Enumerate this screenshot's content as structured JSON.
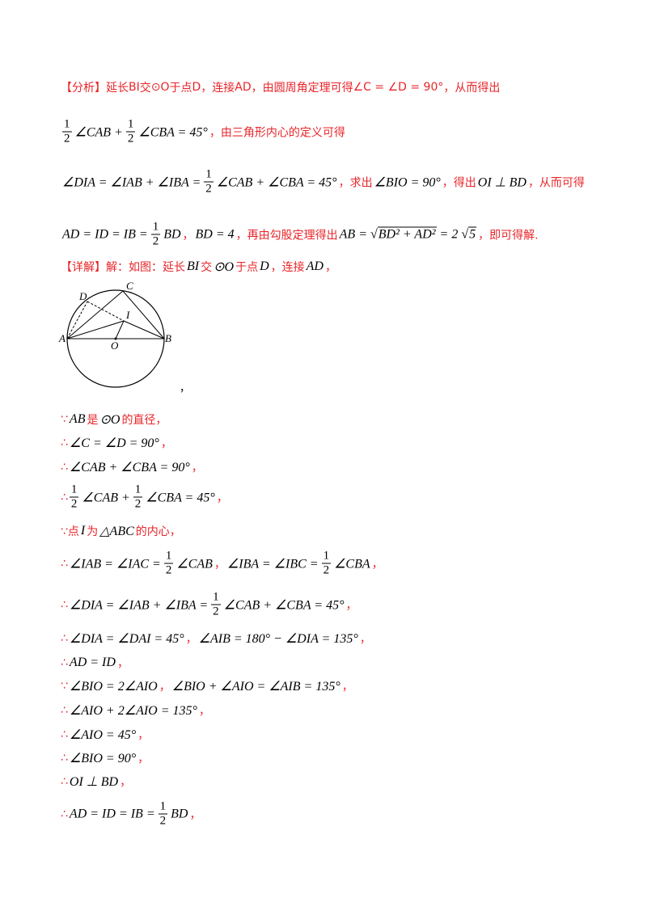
{
  "lines": [
    [
      "【分析】延长",
      "BI",
      "交",
      "⊙O",
      "于点",
      "D",
      "，连接",
      "AD",
      "，由圆周角定理可得",
      "∠C = ∠D = 90°",
      "，从而得出"
    ],
    [
      {
        "frac": [
          "1",
          "2"
        ]
      },
      {
        "math": "∠CAB +"
      },
      {
        "frac": [
          "1",
          "2"
        ]
      },
      {
        "math": "∠CBA = 45°"
      },
      "，由三角形内心的定义可得"
    ],
    [
      {
        "math": "∠DIA = ∠IAB + ∠IBA ="
      },
      {
        "frac": [
          "1",
          "2"
        ]
      },
      {
        "math": "∠CAB + ∠CBA = 45°"
      },
      "，求出",
      {
        "math": "∠BIO = 90°"
      },
      "，得出",
      {
        "math": "OI ⊥ BD"
      },
      "，从而可得"
    ],
    [
      {
        "math": "AD = ID = IB ="
      },
      {
        "frac": [
          "1",
          "2"
        ]
      },
      {
        "math": "BD"
      },
      "，",
      {
        "math": "BD = 4"
      },
      "，再由勾股定理得出",
      {
        "math": "AB ="
      },
      {
        "sqrt": "BD² + AD²"
      },
      {
        "math": "= 2"
      },
      {
        "sqrt": "5"
      },
      "，即可得解."
    ],
    [
      "【详解】解：如图：延长",
      {
        "math": "BI"
      },
      "交",
      {
        "math": "⊙O"
      },
      "于点",
      {
        "math": "D"
      },
      "，连接",
      {
        "math": "AD"
      },
      "，"
    ],
    [
      "∵",
      {
        "math": "AB"
      },
      "是",
      {
        "math": "⊙O"
      },
      "的直径，"
    ],
    [
      "∴",
      {
        "math": "∠C = ∠D = 90°"
      },
      "，"
    ],
    [
      "∴",
      {
        "math": "∠CAB + ∠CBA = 90°"
      },
      "，"
    ],
    [
      "∴",
      {
        "frac": [
          "1",
          "2"
        ]
      },
      {
        "math": "∠CAB +"
      },
      {
        "frac": [
          "1",
          "2"
        ]
      },
      {
        "math": "∠CBA = 45°"
      },
      "，"
    ],
    [
      "∵点",
      {
        "math": "I"
      },
      "为",
      {
        "math": "△ABC"
      },
      "的内心，"
    ],
    [
      "∴",
      {
        "math": "∠IAB = ∠IAC ="
      },
      {
        "frac": [
          "1",
          "2"
        ]
      },
      {
        "math": "∠CAB"
      },
      "，",
      {
        "math": "∠IBA = ∠IBC ="
      },
      {
        "frac": [
          "1",
          "2"
        ]
      },
      {
        "math": "∠CBA"
      },
      "，"
    ],
    [
      "∴",
      {
        "math": "∠DIA = ∠IAB + ∠IBA ="
      },
      {
        "frac": [
          "1",
          "2"
        ]
      },
      {
        "math": "∠CAB + ∠CBA = 45°"
      },
      "，"
    ],
    [
      "∴",
      {
        "math": "∠DIA = ∠DAI = 45°"
      },
      "，",
      {
        "math": "∠AIB = 180° − ∠DIA = 135°"
      },
      "，"
    ],
    [
      "∴",
      {
        "math": "AD = ID"
      },
      "，"
    ],
    [
      "∵",
      {
        "math": "∠BIO = 2∠AIO"
      },
      "，",
      {
        "math": "∠BIO + ∠AIO = ∠AIB = 135°"
      },
      "，"
    ],
    [
      "∴",
      {
        "math": "∠AIO + 2∠AIO = 135°"
      },
      "，"
    ],
    [
      "∴",
      {
        "math": "∠AIO = 45°"
      },
      "，"
    ],
    [
      "∴",
      {
        "math": "∠BIO = 90°"
      },
      "，"
    ],
    [
      "∴",
      {
        "math": "OI ⊥ BD"
      },
      "，"
    ],
    [
      "∴",
      {
        "math": "AD = ID = IB ="
      },
      {
        "frac": [
          "1",
          "2"
        ]
      },
      {
        "math": "BD"
      },
      "，"
    ]
  ],
  "figure": {
    "labels": [
      "D",
      "C",
      "I",
      "A",
      "O",
      "B"
    ],
    "note": "，"
  }
}
